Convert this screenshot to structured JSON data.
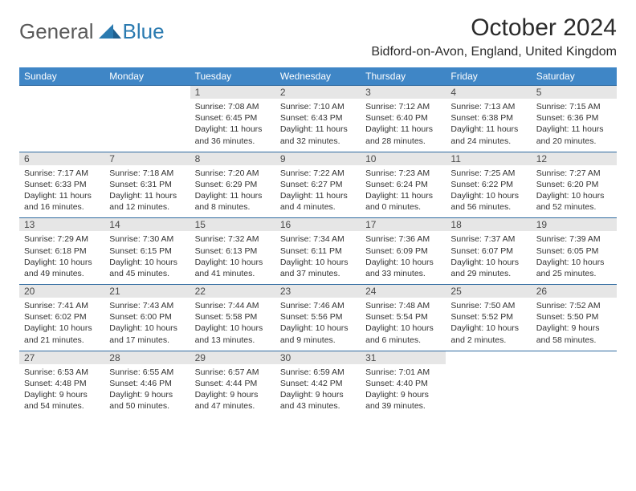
{
  "logo": {
    "textA": "General",
    "textB": "Blue"
  },
  "title": "October 2024",
  "subtitle": "Bidford-on-Avon, England, United Kingdom",
  "colors": {
    "header_bg": "#3f86c6",
    "header_text": "#ffffff",
    "daynum_bg": "#e6e6e6",
    "border": "#2f6aa0",
    "logo_gray": "#5a5a5a",
    "logo_blue": "#2a7ab0"
  },
  "dayHeaders": [
    "Sunday",
    "Monday",
    "Tuesday",
    "Wednesday",
    "Thursday",
    "Friday",
    "Saturday"
  ],
  "weeks": [
    [
      null,
      null,
      {
        "n": "1",
        "sunrise": "Sunrise: 7:08 AM",
        "sunset": "Sunset: 6:45 PM",
        "daylight": "Daylight: 11 hours and 36 minutes."
      },
      {
        "n": "2",
        "sunrise": "Sunrise: 7:10 AM",
        "sunset": "Sunset: 6:43 PM",
        "daylight": "Daylight: 11 hours and 32 minutes."
      },
      {
        "n": "3",
        "sunrise": "Sunrise: 7:12 AM",
        "sunset": "Sunset: 6:40 PM",
        "daylight": "Daylight: 11 hours and 28 minutes."
      },
      {
        "n": "4",
        "sunrise": "Sunrise: 7:13 AM",
        "sunset": "Sunset: 6:38 PM",
        "daylight": "Daylight: 11 hours and 24 minutes."
      },
      {
        "n": "5",
        "sunrise": "Sunrise: 7:15 AM",
        "sunset": "Sunset: 6:36 PM",
        "daylight": "Daylight: 11 hours and 20 minutes."
      }
    ],
    [
      {
        "n": "6",
        "sunrise": "Sunrise: 7:17 AM",
        "sunset": "Sunset: 6:33 PM",
        "daylight": "Daylight: 11 hours and 16 minutes."
      },
      {
        "n": "7",
        "sunrise": "Sunrise: 7:18 AM",
        "sunset": "Sunset: 6:31 PM",
        "daylight": "Daylight: 11 hours and 12 minutes."
      },
      {
        "n": "8",
        "sunrise": "Sunrise: 7:20 AM",
        "sunset": "Sunset: 6:29 PM",
        "daylight": "Daylight: 11 hours and 8 minutes."
      },
      {
        "n": "9",
        "sunrise": "Sunrise: 7:22 AM",
        "sunset": "Sunset: 6:27 PM",
        "daylight": "Daylight: 11 hours and 4 minutes."
      },
      {
        "n": "10",
        "sunrise": "Sunrise: 7:23 AM",
        "sunset": "Sunset: 6:24 PM",
        "daylight": "Daylight: 11 hours and 0 minutes."
      },
      {
        "n": "11",
        "sunrise": "Sunrise: 7:25 AM",
        "sunset": "Sunset: 6:22 PM",
        "daylight": "Daylight: 10 hours and 56 minutes."
      },
      {
        "n": "12",
        "sunrise": "Sunrise: 7:27 AM",
        "sunset": "Sunset: 6:20 PM",
        "daylight": "Daylight: 10 hours and 52 minutes."
      }
    ],
    [
      {
        "n": "13",
        "sunrise": "Sunrise: 7:29 AM",
        "sunset": "Sunset: 6:18 PM",
        "daylight": "Daylight: 10 hours and 49 minutes."
      },
      {
        "n": "14",
        "sunrise": "Sunrise: 7:30 AM",
        "sunset": "Sunset: 6:15 PM",
        "daylight": "Daylight: 10 hours and 45 minutes."
      },
      {
        "n": "15",
        "sunrise": "Sunrise: 7:32 AM",
        "sunset": "Sunset: 6:13 PM",
        "daylight": "Daylight: 10 hours and 41 minutes."
      },
      {
        "n": "16",
        "sunrise": "Sunrise: 7:34 AM",
        "sunset": "Sunset: 6:11 PM",
        "daylight": "Daylight: 10 hours and 37 minutes."
      },
      {
        "n": "17",
        "sunrise": "Sunrise: 7:36 AM",
        "sunset": "Sunset: 6:09 PM",
        "daylight": "Daylight: 10 hours and 33 minutes."
      },
      {
        "n": "18",
        "sunrise": "Sunrise: 7:37 AM",
        "sunset": "Sunset: 6:07 PM",
        "daylight": "Daylight: 10 hours and 29 minutes."
      },
      {
        "n": "19",
        "sunrise": "Sunrise: 7:39 AM",
        "sunset": "Sunset: 6:05 PM",
        "daylight": "Daylight: 10 hours and 25 minutes."
      }
    ],
    [
      {
        "n": "20",
        "sunrise": "Sunrise: 7:41 AM",
        "sunset": "Sunset: 6:02 PM",
        "daylight": "Daylight: 10 hours and 21 minutes."
      },
      {
        "n": "21",
        "sunrise": "Sunrise: 7:43 AM",
        "sunset": "Sunset: 6:00 PM",
        "daylight": "Daylight: 10 hours and 17 minutes."
      },
      {
        "n": "22",
        "sunrise": "Sunrise: 7:44 AM",
        "sunset": "Sunset: 5:58 PM",
        "daylight": "Daylight: 10 hours and 13 minutes."
      },
      {
        "n": "23",
        "sunrise": "Sunrise: 7:46 AM",
        "sunset": "Sunset: 5:56 PM",
        "daylight": "Daylight: 10 hours and 9 minutes."
      },
      {
        "n": "24",
        "sunrise": "Sunrise: 7:48 AM",
        "sunset": "Sunset: 5:54 PM",
        "daylight": "Daylight: 10 hours and 6 minutes."
      },
      {
        "n": "25",
        "sunrise": "Sunrise: 7:50 AM",
        "sunset": "Sunset: 5:52 PM",
        "daylight": "Daylight: 10 hours and 2 minutes."
      },
      {
        "n": "26",
        "sunrise": "Sunrise: 7:52 AM",
        "sunset": "Sunset: 5:50 PM",
        "daylight": "Daylight: 9 hours and 58 minutes."
      }
    ],
    [
      {
        "n": "27",
        "sunrise": "Sunrise: 6:53 AM",
        "sunset": "Sunset: 4:48 PM",
        "daylight": "Daylight: 9 hours and 54 minutes."
      },
      {
        "n": "28",
        "sunrise": "Sunrise: 6:55 AM",
        "sunset": "Sunset: 4:46 PM",
        "daylight": "Daylight: 9 hours and 50 minutes."
      },
      {
        "n": "29",
        "sunrise": "Sunrise: 6:57 AM",
        "sunset": "Sunset: 4:44 PM",
        "daylight": "Daylight: 9 hours and 47 minutes."
      },
      {
        "n": "30",
        "sunrise": "Sunrise: 6:59 AM",
        "sunset": "Sunset: 4:42 PM",
        "daylight": "Daylight: 9 hours and 43 minutes."
      },
      {
        "n": "31",
        "sunrise": "Sunrise: 7:01 AM",
        "sunset": "Sunset: 4:40 PM",
        "daylight": "Daylight: 9 hours and 39 minutes."
      },
      null,
      null
    ]
  ]
}
